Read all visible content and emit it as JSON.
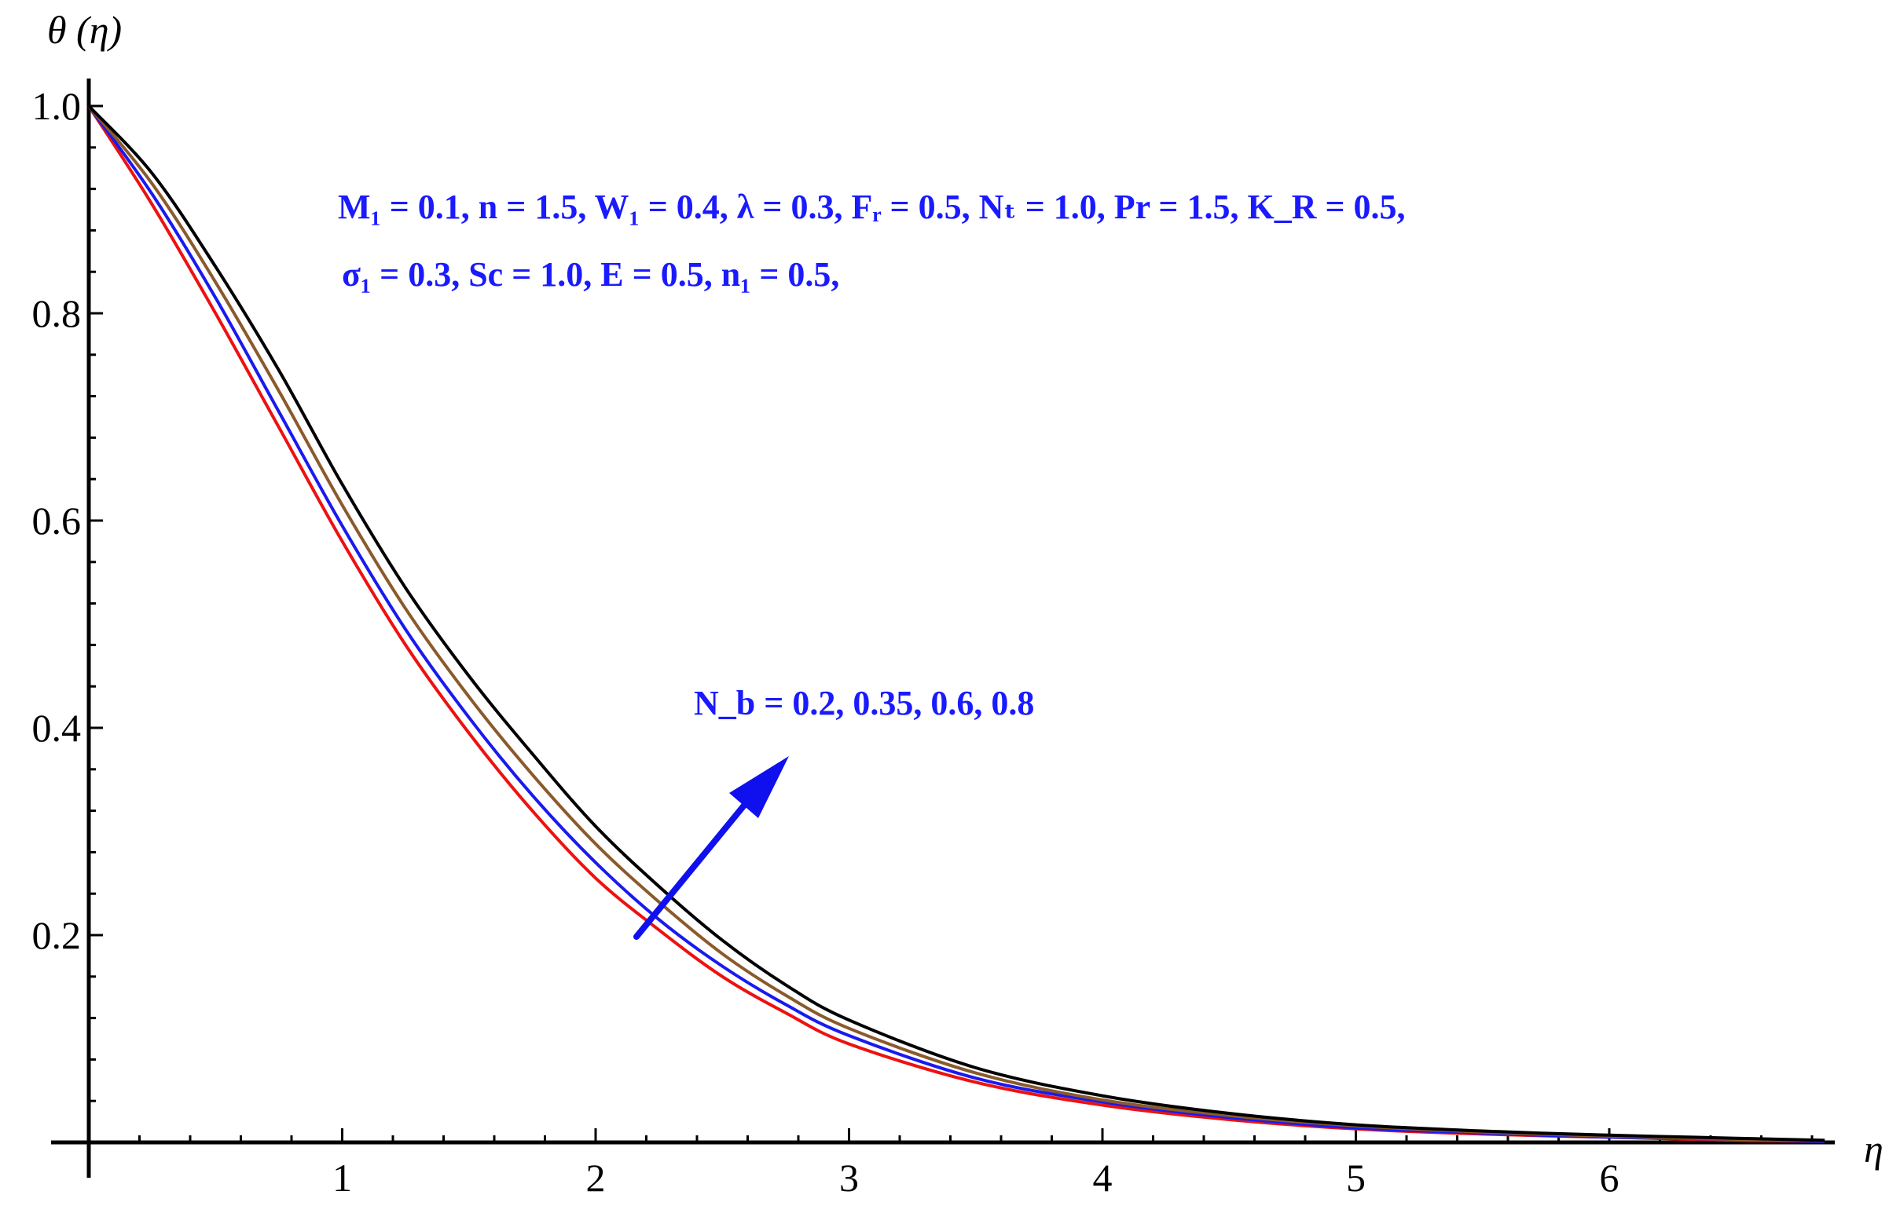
{
  "chart_data": {
    "type": "line",
    "title": "",
    "xlabel": "η",
    "ylabel": "θ (η)",
    "xlim": [
      0,
      6.85
    ],
    "ylim": [
      0,
      1.0
    ],
    "xticks": [
      1,
      2,
      3,
      4,
      5,
      6
    ],
    "yticks": [
      0.2,
      0.4,
      0.6,
      0.8,
      1.0
    ],
    "xtick_labels": [
      "1",
      "2",
      "3",
      "4",
      "5",
      "6"
    ],
    "ytick_labels": [
      "0.2",
      "0.4",
      "0.6",
      "0.8",
      "1.0"
    ],
    "grid": false,
    "x": [
      0,
      0.25,
      0.5,
      0.75,
      1.0,
      1.25,
      1.5,
      1.75,
      2.0,
      2.25,
      2.5,
      2.75,
      3.0,
      3.5,
      4.0,
      4.5,
      5.0,
      5.5,
      6.0,
      6.5,
      6.85
    ],
    "series": [
      {
        "color": "#ee1111",
        "values": [
          1.0,
          0.905,
          0.8,
          0.69,
          0.58,
          0.48,
          0.395,
          0.32,
          0.255,
          0.205,
          0.16,
          0.125,
          0.095,
          0.058,
          0.036,
          0.022,
          0.013,
          0.008,
          0.005,
          0.002,
          0.001
        ]
      },
      {
        "color": "#1a1aee",
        "values": [
          1.0,
          0.915,
          0.815,
          0.705,
          0.595,
          0.495,
          0.41,
          0.335,
          0.27,
          0.215,
          0.17,
          0.133,
          0.103,
          0.062,
          0.039,
          0.024,
          0.014,
          0.009,
          0.005,
          0.003,
          0.001
        ]
      },
      {
        "color": "#8b5a2b",
        "values": [
          1.0,
          0.925,
          0.83,
          0.725,
          0.615,
          0.515,
          0.43,
          0.355,
          0.288,
          0.232,
          0.182,
          0.142,
          0.11,
          0.067,
          0.041,
          0.026,
          0.016,
          0.01,
          0.006,
          0.003,
          0.002
        ]
      },
      {
        "color": "#000000",
        "values": [
          1.0,
          0.935,
          0.845,
          0.745,
          0.635,
          0.535,
          0.45,
          0.375,
          0.305,
          0.247,
          0.195,
          0.152,
          0.118,
          0.072,
          0.045,
          0.028,
          0.017,
          0.011,
          0.007,
          0.004,
          0.002
        ]
      }
    ],
    "annotations": {
      "params_line1": "M₁ =  0.1, n = 1.5, W₁ =  0.4,  λ = 0.3, Fᵣ = 0.5, Nₜ = 1.0, Pr = 1.5, K_R = 0.5,",
      "params_line2": "σ₁ = 0.3,  Sc = 1.0,  E = 0.5, n₁ = 0.5,",
      "nb_label": "N_b  = 0.2, 0.35, 0.6, 0.8",
      "arrow_color": "#1010ee"
    }
  }
}
